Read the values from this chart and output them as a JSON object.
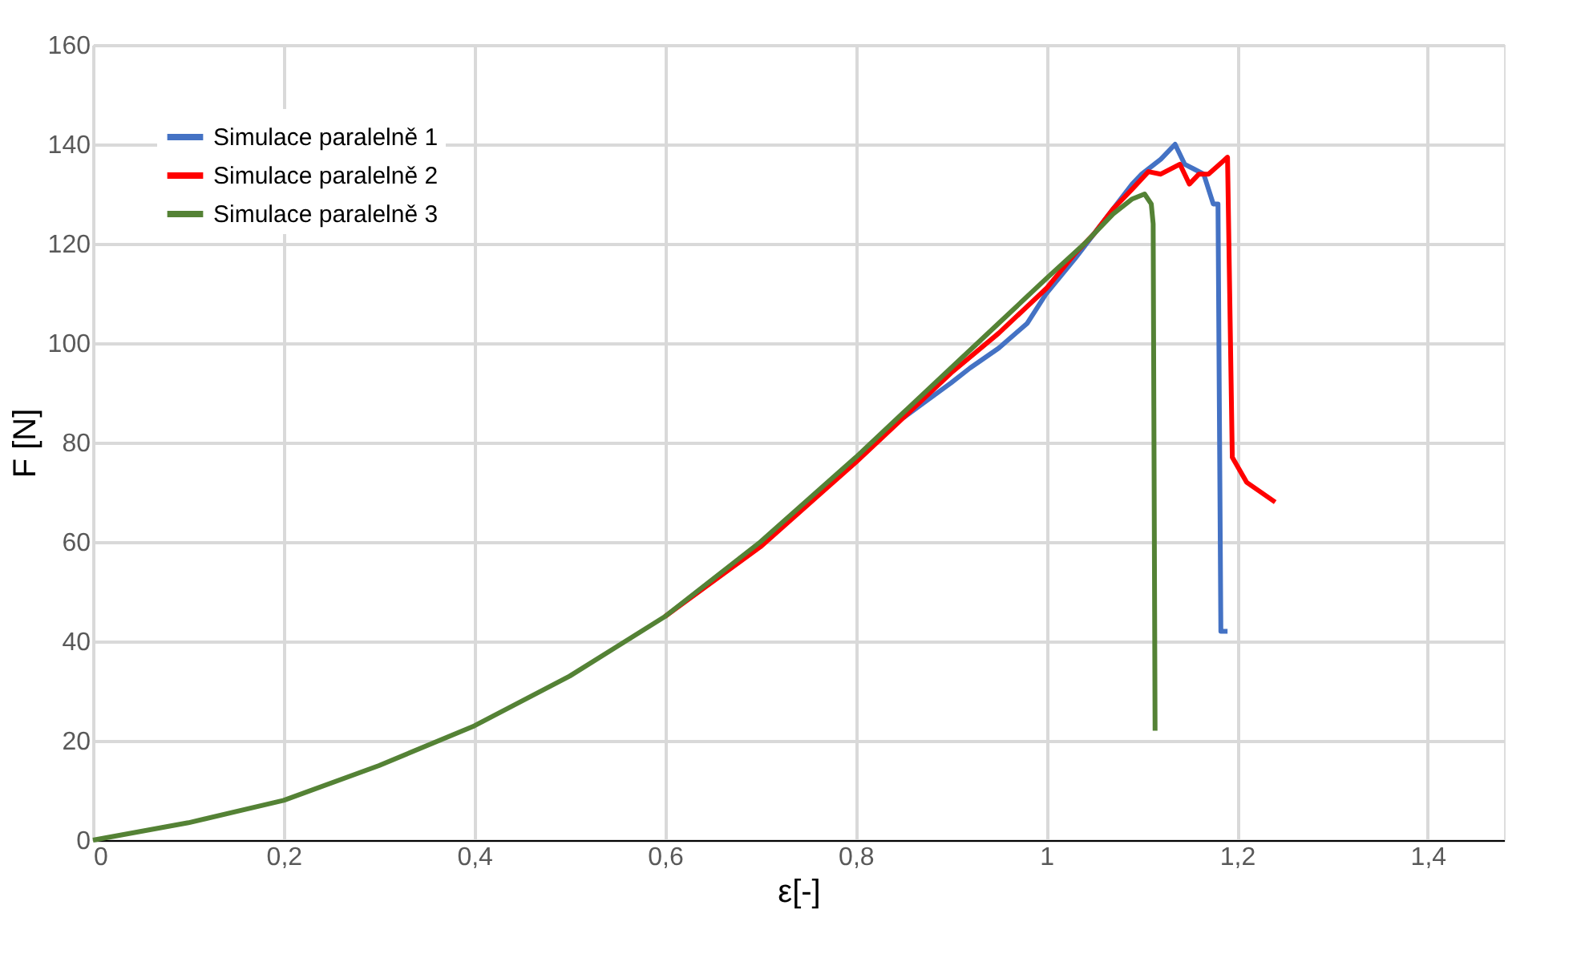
{
  "chart_data": {
    "type": "line",
    "xlabel": "ε[-]",
    "ylabel": "F [N]",
    "xlim": [
      0,
      1.48
    ],
    "xticks": [
      0,
      {
        "value": 0.2,
        "label": "0,2"
      },
      {
        "value": 0.4,
        "label": "0,4"
      },
      {
        "value": 0.6,
        "label": "0,6"
      },
      {
        "value": 0.8,
        "label": "0,8"
      },
      1,
      {
        "value": 1.2,
        "label": "1,2"
      },
      {
        "value": 1.4,
        "label": "1,4"
      }
    ],
    "ylim": [
      0,
      160
    ],
    "yticks": [
      0,
      20,
      40,
      60,
      80,
      100,
      120,
      140,
      160
    ],
    "grid": true,
    "legend": "top left",
    "marker": "none",
    "line_style": "solid",
    "series": [
      {
        "name": "Simulace paralelně 1",
        "color": "#4472c4",
        "x": [
          0.85,
          0.9,
          0.92,
          0.95,
          0.98,
          1.0,
          1.03,
          1.05,
          1.07,
          1.09,
          1.1,
          1.12,
          1.135,
          1.145,
          1.155,
          1.165,
          1.175,
          1.18,
          1.183,
          1.19
        ],
        "values": [
          85,
          92,
          95,
          99,
          104,
          110,
          117,
          122,
          127,
          132,
          134,
          137,
          140,
          136,
          135,
          134,
          128,
          128,
          42,
          42
        ]
      },
      {
        "name": "Simulace paralelně 2",
        "color": "#ff0000",
        "x": [
          0.6,
          0.7,
          0.8,
          0.85,
          0.9,
          0.95,
          1.0,
          1.03,
          1.05,
          1.07,
          1.09,
          1.107,
          1.12,
          1.14,
          1.15,
          1.16,
          1.17,
          1.19,
          1.195,
          1.21,
          1.24
        ],
        "values": [
          45,
          59,
          76,
          85,
          94,
          102,
          111,
          118,
          122,
          127,
          131,
          134.5,
          134,
          136,
          132,
          134,
          134,
          137.4,
          77,
          72,
          68
        ]
      },
      {
        "name": "Simulace paralelně 3",
        "color": "#548235",
        "x": [
          0,
          0.1,
          0.2,
          0.3,
          0.4,
          0.5,
          0.6,
          0.7,
          0.8,
          0.85,
          0.9,
          0.95,
          1.0,
          1.04,
          1.07,
          1.09,
          1.103,
          1.11,
          1.112,
          1.114
        ],
        "values": [
          0,
          3.5,
          8,
          15,
          23,
          33,
          45,
          60,
          77,
          86,
          95,
          104,
          113,
          120,
          126,
          129,
          130,
          128,
          124,
          22
        ]
      }
    ]
  }
}
